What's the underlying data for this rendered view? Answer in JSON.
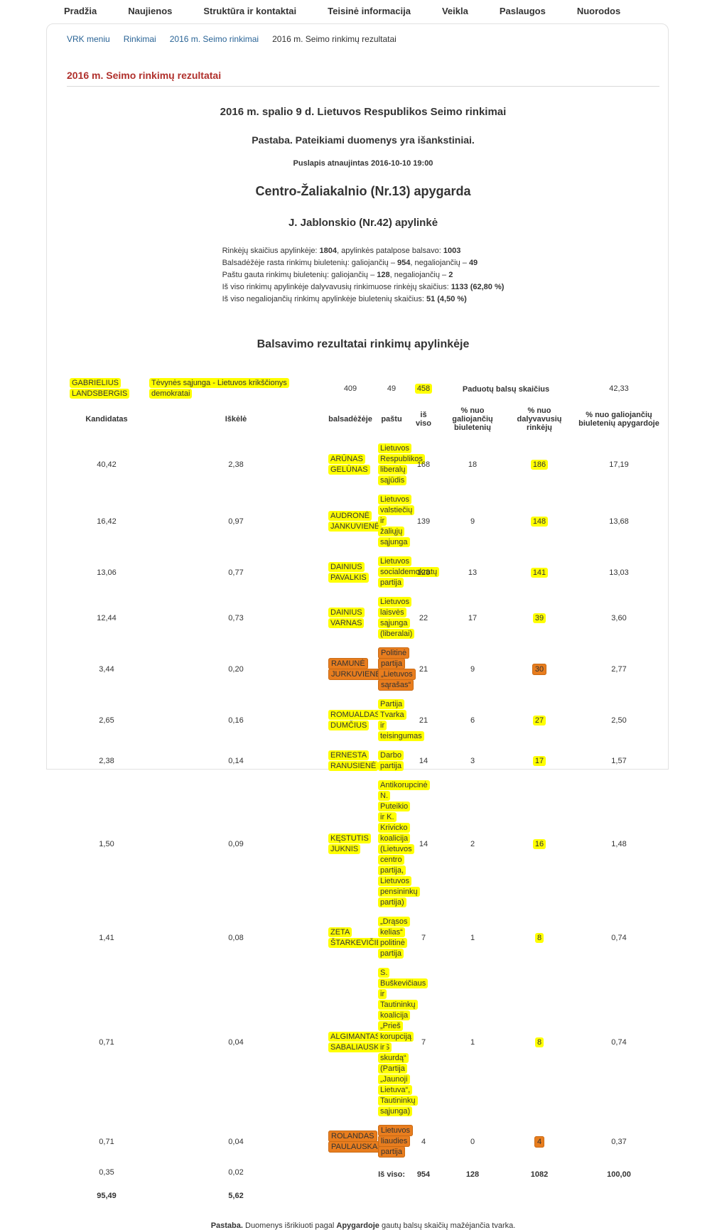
{
  "colors": {
    "accent_red": "#b0302c",
    "link_blue": "#2a6496",
    "highlight_yellow": "#ffff00",
    "highlight_orange": "#e87d1e"
  },
  "nav": {
    "items": [
      "Pradžia",
      "Naujienos",
      "Struktūra ir kontaktai",
      "Teisinė informacija",
      "Veikla",
      "Paslaugos",
      "Nuorodos"
    ]
  },
  "breadcrumb": {
    "links": [
      "VRK meniu",
      "Rinkimai",
      "2016 m. Seimo rinkimai"
    ],
    "current": "2016 m. Seimo rinkimų rezultatai"
  },
  "page": {
    "section_title": "2016 m. Seimo rinkimų rezultatai",
    "main_title": "2016 m. spalio 9 d. Lietuvos Respublikos Seimo rinkimai",
    "prelim_note": "Pastaba. Pateikiami duomenys yra išankstiniai.",
    "updated": "Puslapis atnaujintas 2016-10-10 19:00",
    "district": "Centro-Žaliakalnio (Nr.13) apygarda",
    "precinct": "J. Jablonskio (Nr.42) apylinkė"
  },
  "stats": [
    [
      {
        "t": "Rinkėjų skaičius apylinkėje: "
      },
      {
        "t": "1804",
        "b": true
      },
      {
        "t": ", apylinkės patalpose balsavo: "
      },
      {
        "t": "1003",
        "b": true
      }
    ],
    [
      {
        "t": "Balsadėžėje rasta rinkimų biuletenių: galiojančių – "
      },
      {
        "t": "954",
        "b": true
      },
      {
        "t": ", negaliojančių – "
      },
      {
        "t": "49",
        "b": true
      }
    ],
    [
      {
        "t": "Paštu gauta rinkimų biuletenių: galiojančių – "
      },
      {
        "t": "128",
        "b": true
      },
      {
        "t": ", negaliojančių – "
      },
      {
        "t": "2",
        "b": true
      }
    ],
    [
      {
        "t": "Iš viso rinkimų apylinkėje dalyvavusių rinkimuose rinkėjų skaičius: "
      },
      {
        "t": "1133 (62,80 %)",
        "b": true
      }
    ],
    [
      {
        "t": "Iš viso negaliojančių rinkimų apylinkėje biuletenių skaičius: "
      },
      {
        "t": "51 (4,50 %)",
        "b": true
      }
    ]
  ],
  "results": {
    "title": "Balsavimo rezultatai rinkimų apylinkėje",
    "group_header": "Paduotų balsų skaičius",
    "columns": [
      "Kandidatas",
      "Iškėlė",
      "balsadėžėje",
      "paštu",
      "iš viso",
      "% nuo galiojančių biuletenių",
      "% nuo dalyvavusių rinkėjų",
      "% nuo galiojančių biuletenių apygardoje"
    ],
    "rows": [
      {
        "candidate": "GABRIELIUS LANDSBERGIS",
        "party": "Tėvynės sąjunga - Lietuvos krikščionys demokratai",
        "ballot_box": "409",
        "mail": "49",
        "total": "458",
        "pct_valid": "42,33",
        "pct_participants": "40,42",
        "pct_district": "2,38",
        "highlight": "yellow"
      },
      {
        "candidate": "ARŪNAS GELŪNAS",
        "party": "Lietuvos Respublikos liberalų sąjūdis",
        "ballot_box": "168",
        "mail": "18",
        "total": "186",
        "pct_valid": "17,19",
        "pct_participants": "16,42",
        "pct_district": "0,97",
        "highlight": "yellow"
      },
      {
        "candidate": "AUDRONĖ JANKUVIENĖ",
        "party": "Lietuvos valstiečių ir žaliųjų sąjunga",
        "ballot_box": "139",
        "mail": "9",
        "total": "148",
        "pct_valid": "13,68",
        "pct_participants": "13,06",
        "pct_district": "0,77",
        "highlight": "yellow"
      },
      {
        "candidate": "DAINIUS PAVALKIS",
        "party": "Lietuvos socialdemokratų partija",
        "ballot_box": "128",
        "mail": "13",
        "total": "141",
        "pct_valid": "13,03",
        "pct_participants": "12,44",
        "pct_district": "0,73",
        "highlight": "yellow"
      },
      {
        "candidate": "DAINIUS VARNAS",
        "party": "Lietuvos laisvės sąjunga (liberalai)",
        "ballot_box": "22",
        "mail": "17",
        "total": "39",
        "pct_valid": "3,60",
        "pct_participants": "3,44",
        "pct_district": "0,20",
        "highlight": "yellow"
      },
      {
        "candidate": "RAMUNĖ JURKUVIENĖ",
        "party": "Politinė partija „Lietuvos sąrašas“",
        "ballot_box": "21",
        "mail": "9",
        "total": "30",
        "pct_valid": "2,77",
        "pct_participants": "2,65",
        "pct_district": "0,16",
        "highlight": "orange"
      },
      {
        "candidate": "ROMUALDAS DUMČIUS",
        "party": "Partija Tvarka ir teisingumas",
        "ballot_box": "21",
        "mail": "6",
        "total": "27",
        "pct_valid": "2,50",
        "pct_participants": "2,38",
        "pct_district": "0,14",
        "highlight": "yellow"
      },
      {
        "candidate": "ERNESTA RANUSIENĖ",
        "party": "Darbo partija",
        "ballot_box": "14",
        "mail": "3",
        "total": "17",
        "pct_valid": "1,57",
        "pct_participants": "1,50",
        "pct_district": "0,09",
        "highlight": "yellow"
      },
      {
        "candidate": "KĘSTUTIS JUKNIS",
        "party": "Antikorupcinė N. Puteikio ir K. Krivicko koalicija (Lietuvos centro partija, Lietuvos pensininkų partija)",
        "ballot_box": "14",
        "mail": "2",
        "total": "16",
        "pct_valid": "1,48",
        "pct_participants": "1,41",
        "pct_district": "0,08",
        "highlight": "yellow"
      },
      {
        "candidate": "ZETA ŠTARKEVIČIENĖ",
        "party": "„Drąsos kelias“ politinė partija",
        "ballot_box": "7",
        "mail": "1",
        "total": "8",
        "pct_valid": "0,74",
        "pct_participants": "0,71",
        "pct_district": "0,04",
        "highlight": "yellow"
      },
      {
        "candidate": "ALGIMANTAS SABALIAUSKAS",
        "party": "S. Buškevičiaus ir Tautininkų koalicija „Prieš korupciją ir skurdą“ (Partija „Jaunoji Lietuva“, Tautininkų sąjunga)",
        "ballot_box": "7",
        "mail": "1",
        "total": "8",
        "pct_valid": "0,74",
        "pct_participants": "0,71",
        "pct_district": "0,04",
        "highlight": "yellow"
      },
      {
        "candidate": "ROLANDAS PAULAUSKAS",
        "party": "Lietuvos liaudies partija",
        "ballot_box": "4",
        "mail": "0",
        "total": "4",
        "pct_valid": "0,37",
        "pct_participants": "0,35",
        "pct_district": "0,02",
        "highlight": "orange"
      }
    ],
    "totals": {
      "label": "Iš viso:",
      "ballot_box": "954",
      "mail": "128",
      "total": "1082",
      "pct_valid": "100,00",
      "pct_participants": "95,49",
      "pct_district": "5,62"
    }
  },
  "footer": [
    {
      "t": "Pastaba.",
      "b": true
    },
    {
      "t": " Duomenys išrikiuoti pagal "
    },
    {
      "t": "Apygardoje",
      "b": true
    },
    {
      "t": " gautų balsų skaičių mažėjančia tvarka."
    }
  ]
}
